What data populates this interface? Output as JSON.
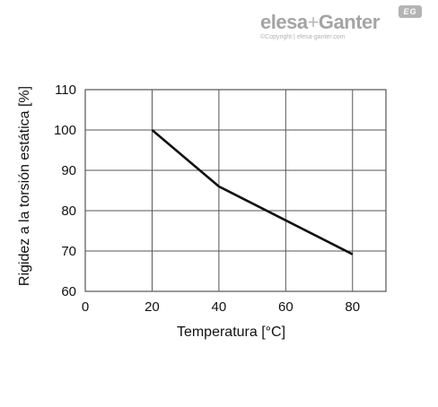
{
  "logo": {
    "brand_left": "elesa",
    "brand_plus": "+",
    "brand_right": "Ganter",
    "badge": "EG",
    "copyright": "©Copyright | elesa-ganter.com"
  },
  "colors": {
    "line": "#111111",
    "grid": "#555555",
    "logo": "#a4a4a4"
  },
  "chart_data": {
    "type": "line",
    "title": "",
    "xlabel": "Temperatura [°C]",
    "ylabel": "Rigidez a la torsión estática [%]",
    "xlim": [
      0,
      90
    ],
    "ylim": [
      60,
      110
    ],
    "x_ticks": [
      0,
      20,
      40,
      60,
      80
    ],
    "y_ticks": [
      60,
      70,
      80,
      90,
      100,
      110
    ],
    "grid": true,
    "legend": "none",
    "series": [
      {
        "x": [
          20,
          40,
          80
        ],
        "y": [
          100,
          86,
          69.2
        ]
      }
    ]
  }
}
